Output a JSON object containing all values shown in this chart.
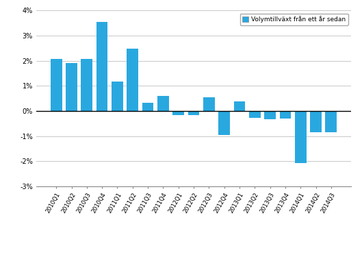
{
  "categories": [
    "2010Q1",
    "2010Q2",
    "2010Q3",
    "2010Q4",
    "2011Q1",
    "2011Q2",
    "2011Q3",
    "2011Q4",
    "2012Q1",
    "2012Q2",
    "2012Q3",
    "2012Q4",
    "2013Q1",
    "2013Q2",
    "2013Q3",
    "2013Q4",
    "2014Q1",
    "2014Q2",
    "2014Q3"
  ],
  "values": [
    2.07,
    1.9,
    2.06,
    3.55,
    1.18,
    2.47,
    0.33,
    0.6,
    -0.17,
    -0.17,
    0.55,
    -0.95,
    0.38,
    -0.28,
    -0.33,
    -0.3,
    -2.07,
    -0.85,
    -0.85
  ],
  "bar_color": "#29a8e0",
  "legend_label": "Volymtillväxt från ett år sedan",
  "ylim": [
    -3,
    4
  ],
  "yticks": [
    -3,
    -2,
    -1,
    0,
    1,
    2,
    3,
    4
  ],
  "ytick_labels": [
    "-3%",
    "-2%",
    "-1%",
    "0%",
    "1%",
    "2%",
    "3%",
    "4%"
  ],
  "grid_color": "#c8c8c8",
  "background_color": "#ffffff",
  "bar_edge_color": "none",
  "figsize": [
    5.29,
    3.78
  ],
  "dpi": 100
}
